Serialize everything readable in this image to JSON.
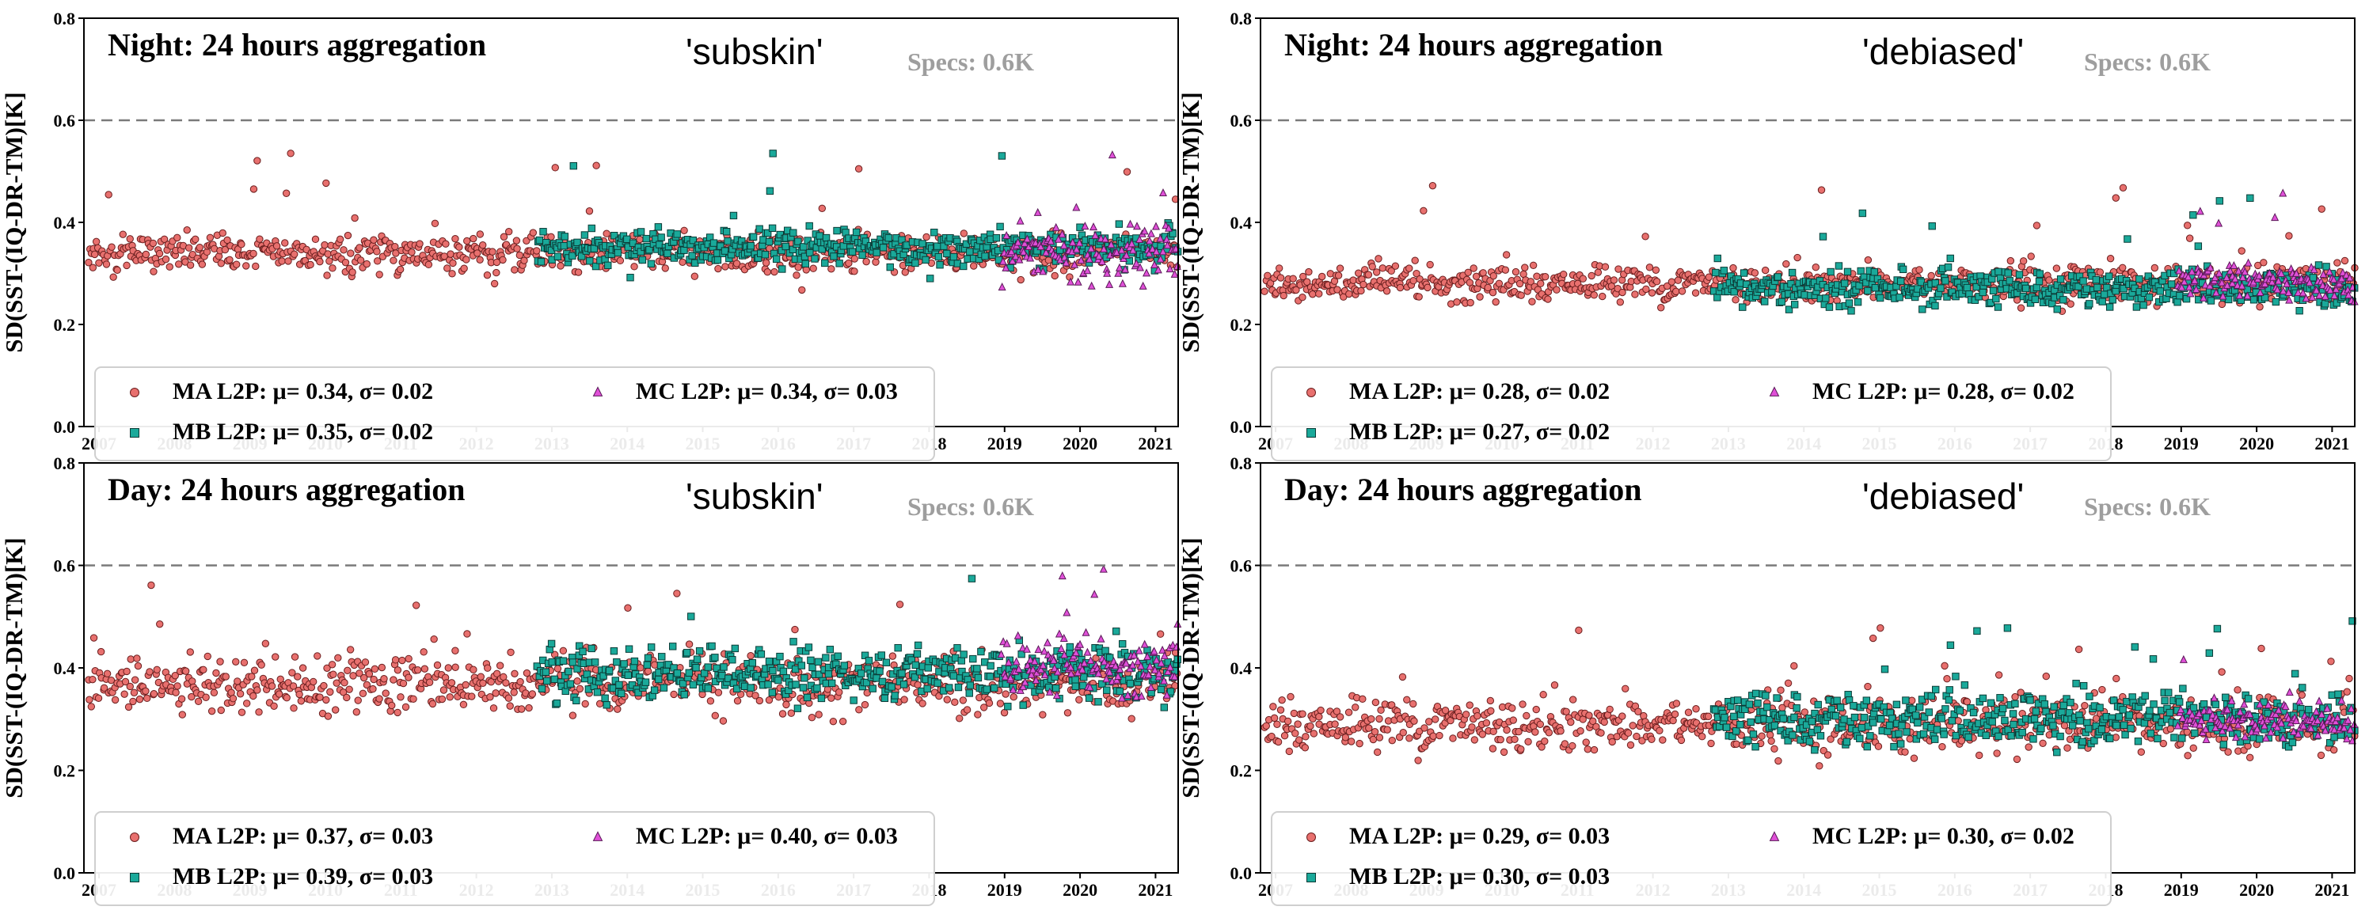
{
  "chart_data": [
    {
      "type": "scatter",
      "title": "Night: 24 hours aggregation",
      "variant": "'subskin'",
      "specs": "Specs: 0.6K",
      "spec_threshold": 0.6,
      "ylabel": "SD(SST-(IQ-DR-TM)[K]",
      "ylim": [
        0.0,
        0.8
      ],
      "yticks": [
        "0.0",
        "0.2",
        "0.4",
        "0.6",
        "0.8"
      ],
      "xlim": [
        2006.8,
        2021.3
      ],
      "xticks": [
        "2007",
        "2008",
        "2009",
        "2010",
        "2011",
        "2012",
        "2013",
        "2014",
        "2015",
        "2016",
        "2017",
        "2018",
        "2019",
        "2020",
        "2021"
      ],
      "legend": [
        "MA L2P: μ= 0.34, σ= 0.02",
        "MC L2P: μ= 0.34, σ= 0.03",
        "MB L2P: μ= 0.35, σ= 0.02"
      ],
      "series": [
        {
          "name": "MA L2P",
          "start": 2006.85,
          "end": 2021.3,
          "mean": 0.34,
          "sd": 0.02,
          "color": "#e8706e"
        },
        {
          "name": "MB L2P",
          "start": 2012.8,
          "end": 2021.3,
          "mean": 0.35,
          "sd": 0.02,
          "color": "#1aa99a"
        },
        {
          "name": "MC L2P",
          "start": 2018.95,
          "end": 2021.3,
          "mean": 0.34,
          "sd": 0.03,
          "color": "#e050d8"
        }
      ]
    },
    {
      "type": "scatter",
      "title": "Night: 24 hours aggregation",
      "variant": "'debiased'",
      "specs": "Specs: 0.6K",
      "spec_threshold": 0.6,
      "ylabel": "SD(SST-(IQ-DR-TM)[K]",
      "ylim": [
        0.0,
        0.8
      ],
      "yticks": [
        "0.0",
        "0.2",
        "0.4",
        "0.6",
        "0.8"
      ],
      "xlim": [
        2006.8,
        2021.3
      ],
      "xticks": [
        "2007",
        "2008",
        "2009",
        "2010",
        "2011",
        "2012",
        "2013",
        "2014",
        "2015",
        "2016",
        "2017",
        "2018",
        "2019",
        "2020",
        "2021"
      ],
      "legend": [
        "MA L2P: μ= 0.28, σ= 0.02",
        "MC L2P: μ= 0.28, σ= 0.02",
        "MB L2P: μ= 0.27, σ= 0.02"
      ],
      "series": [
        {
          "name": "MA L2P",
          "start": 2006.85,
          "end": 2021.3,
          "mean": 0.28,
          "sd": 0.02,
          "color": "#e8706e"
        },
        {
          "name": "MB L2P",
          "start": 2012.8,
          "end": 2021.3,
          "mean": 0.27,
          "sd": 0.02,
          "color": "#1aa99a"
        },
        {
          "name": "MC L2P",
          "start": 2018.95,
          "end": 2021.3,
          "mean": 0.28,
          "sd": 0.02,
          "color": "#e050d8"
        }
      ]
    },
    {
      "type": "scatter",
      "title": "Day: 24 hours aggregation",
      "variant": "'subskin'",
      "specs": "Specs: 0.6K",
      "spec_threshold": 0.6,
      "ylabel": "SD(SST-(IQ-DR-TM)[K]",
      "ylim": [
        0.0,
        0.8
      ],
      "yticks": [
        "0.0",
        "0.2",
        "0.4",
        "0.6",
        "0.8"
      ],
      "xlim": [
        2006.8,
        2021.3
      ],
      "xticks": [
        "2007",
        "2008",
        "2009",
        "2010",
        "2011",
        "2012",
        "2013",
        "2014",
        "2015",
        "2016",
        "2017",
        "2018",
        "2019",
        "2020",
        "2021"
      ],
      "legend": [
        "MA L2P: μ= 0.37, σ= 0.03",
        "MC L2P: μ= 0.40, σ= 0.03",
        "MB L2P: μ= 0.39, σ= 0.03"
      ],
      "series": [
        {
          "name": "MA L2P",
          "start": 2006.85,
          "end": 2021.3,
          "mean": 0.37,
          "sd": 0.03,
          "color": "#e8706e"
        },
        {
          "name": "MB L2P",
          "start": 2012.8,
          "end": 2021.3,
          "mean": 0.39,
          "sd": 0.03,
          "color": "#1aa99a"
        },
        {
          "name": "MC L2P",
          "start": 2018.95,
          "end": 2021.3,
          "mean": 0.4,
          "sd": 0.03,
          "color": "#e050d8"
        }
      ]
    },
    {
      "type": "scatter",
      "title": "Day: 24 hours aggregation",
      "variant": "'debiased'",
      "specs": "Specs: 0.6K",
      "spec_threshold": 0.6,
      "ylabel": "SD(SST-(IQ-DR-TM)[K]",
      "ylim": [
        0.0,
        0.8
      ],
      "yticks": [
        "0.0",
        "0.2",
        "0.4",
        "0.6",
        "0.8"
      ],
      "xlim": [
        2006.8,
        2021.3
      ],
      "xticks": [
        "2007",
        "2008",
        "2009",
        "2010",
        "2011",
        "2012",
        "2013",
        "2014",
        "2015",
        "2016",
        "2017",
        "2018",
        "2019",
        "2020",
        "2021"
      ],
      "legend": [
        "MA L2P: μ= 0.29, σ= 0.03",
        "MC L2P: μ= 0.30, σ= 0.02",
        "MB L2P: μ= 0.30, σ= 0.03"
      ],
      "series": [
        {
          "name": "MA L2P",
          "start": 2006.85,
          "end": 2021.3,
          "mean": 0.29,
          "sd": 0.03,
          "color": "#e8706e"
        },
        {
          "name": "MB L2P",
          "start": 2012.8,
          "end": 2021.3,
          "mean": 0.3,
          "sd": 0.03,
          "color": "#1aa99a"
        },
        {
          "name": "MC L2P",
          "start": 2018.95,
          "end": 2021.3,
          "mean": 0.3,
          "sd": 0.02,
          "color": "#e050d8"
        }
      ]
    }
  ]
}
